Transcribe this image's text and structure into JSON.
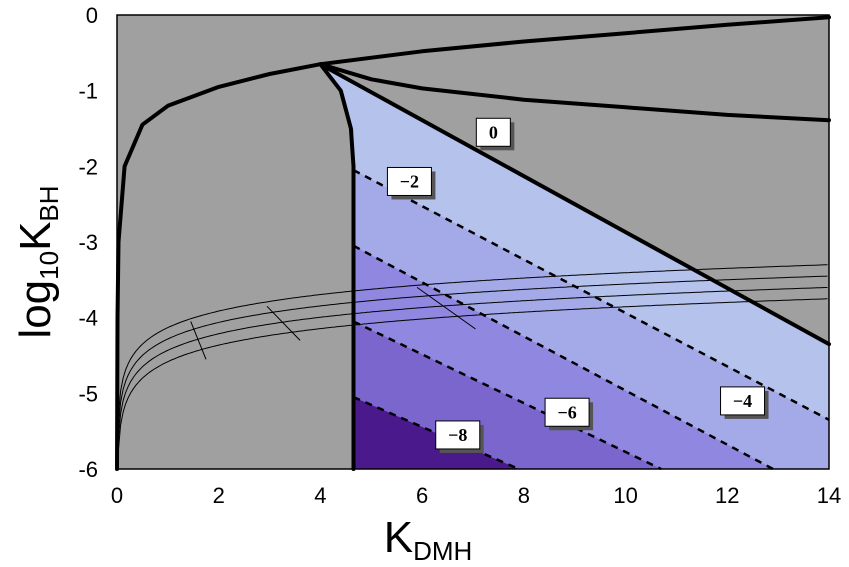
{
  "chart_data": {
    "type": "contour",
    "xlabel": {
      "main": "K",
      "sub": "DMH"
    },
    "ylabel": {
      "main": "log",
      "sub1": "10",
      "mid": "K",
      "sub2": "BH"
    },
    "xlim": [
      0,
      14
    ],
    "ylim": [
      -6,
      0
    ],
    "x_ticks": [
      "0",
      "2",
      "4",
      "6",
      "8",
      "10",
      "12",
      "14"
    ],
    "y_ticks": [
      "0",
      "-1",
      "-2",
      "-3",
      "-4",
      "-5",
      "-6"
    ],
    "background_color": "#a0a0a0",
    "regions": [
      {
        "name": "level-0-to-neg2",
        "color": "#b4c2ec"
      },
      {
        "name": "level-neg2-to-neg4",
        "color": "#a4aae8"
      },
      {
        "name": "level-neg4-to-neg6",
        "color": "#9088e0"
      },
      {
        "name": "level-neg6-to-neg8",
        "color": "#7a66cc"
      },
      {
        "name": "level-below-neg8",
        "color": "#4a1a8c"
      }
    ],
    "boundaries": {
      "left_curve": [
        [
          0,
          -6
        ],
        [
          0.01,
          -4
        ],
        [
          0.03,
          -3
        ],
        [
          0.15,
          -2
        ],
        [
          0.5,
          -1.45
        ],
        [
          1,
          -1.2
        ],
        [
          2,
          -0.95
        ],
        [
          3,
          -0.78
        ],
        [
          4,
          -0.65
        ]
      ],
      "cusp": [
        4,
        -0.65
      ],
      "upper_curve": [
        [
          4,
          -0.65
        ],
        [
          6,
          -0.48
        ],
        [
          8,
          -0.35
        ],
        [
          10,
          -0.24
        ],
        [
          12,
          -0.13
        ],
        [
          14,
          -0.03
        ]
      ],
      "middle_curve": [
        [
          4,
          -0.65
        ],
        [
          5,
          -0.85
        ],
        [
          6,
          -0.97
        ],
        [
          8,
          -1.12
        ],
        [
          10,
          -1.22
        ],
        [
          12,
          -1.32
        ],
        [
          14,
          -1.39
        ]
      ],
      "diagonal_line": [
        [
          4,
          -0.65
        ],
        [
          14,
          -4.35
        ]
      ],
      "inner_curve": [
        [
          4,
          -0.65
        ],
        [
          4.4,
          -1.0
        ],
        [
          4.6,
          -1.5
        ],
        [
          4.65,
          -2.0
        ],
        [
          4.65,
          -6
        ]
      ]
    },
    "contours": [
      {
        "label": "0",
        "line_style": "solid",
        "points": [
          [
            4,
            -0.65
          ],
          [
            14,
            -4.35
          ]
        ]
      },
      {
        "label": "−2",
        "line_style": "dashed",
        "points": [
          [
            4.65,
            -2.05
          ],
          [
            14,
            -5.35
          ]
        ]
      },
      {
        "label": "−4",
        "line_style": "dashed",
        "points": [
          [
            4.65,
            -3.05
          ],
          [
            12.9,
            -6
          ]
        ]
      },
      {
        "label": "−6",
        "line_style": "dashed",
        "points": [
          [
            4.65,
            -4.05
          ],
          [
            10.7,
            -6
          ]
        ]
      },
      {
        "label": "−8",
        "line_style": "dashed",
        "points": [
          [
            4.65,
            -5.05
          ],
          [
            7.9,
            -6
          ]
        ]
      }
    ],
    "contour_label_positions": [
      [
        7.4,
        -1.55
      ],
      [
        5.75,
        -2.2
      ],
      [
        12.3,
        -5.1
      ],
      [
        8.85,
        -5.25
      ],
      [
        6.7,
        -5.55
      ]
    ],
    "thin_curve_offsets": [
      -0.55,
      -0.4,
      -0.25,
      -0.1
    ],
    "thin_cross_lines": [
      [
        [
          1.45,
          -4.05
        ],
        [
          1.75,
          -4.55
        ]
      ],
      [
        [
          2.95,
          -3.85
        ],
        [
          3.6,
          -4.3
        ]
      ],
      [
        [
          5.9,
          -3.6
        ],
        [
          7.05,
          -4.15
        ]
      ]
    ]
  }
}
